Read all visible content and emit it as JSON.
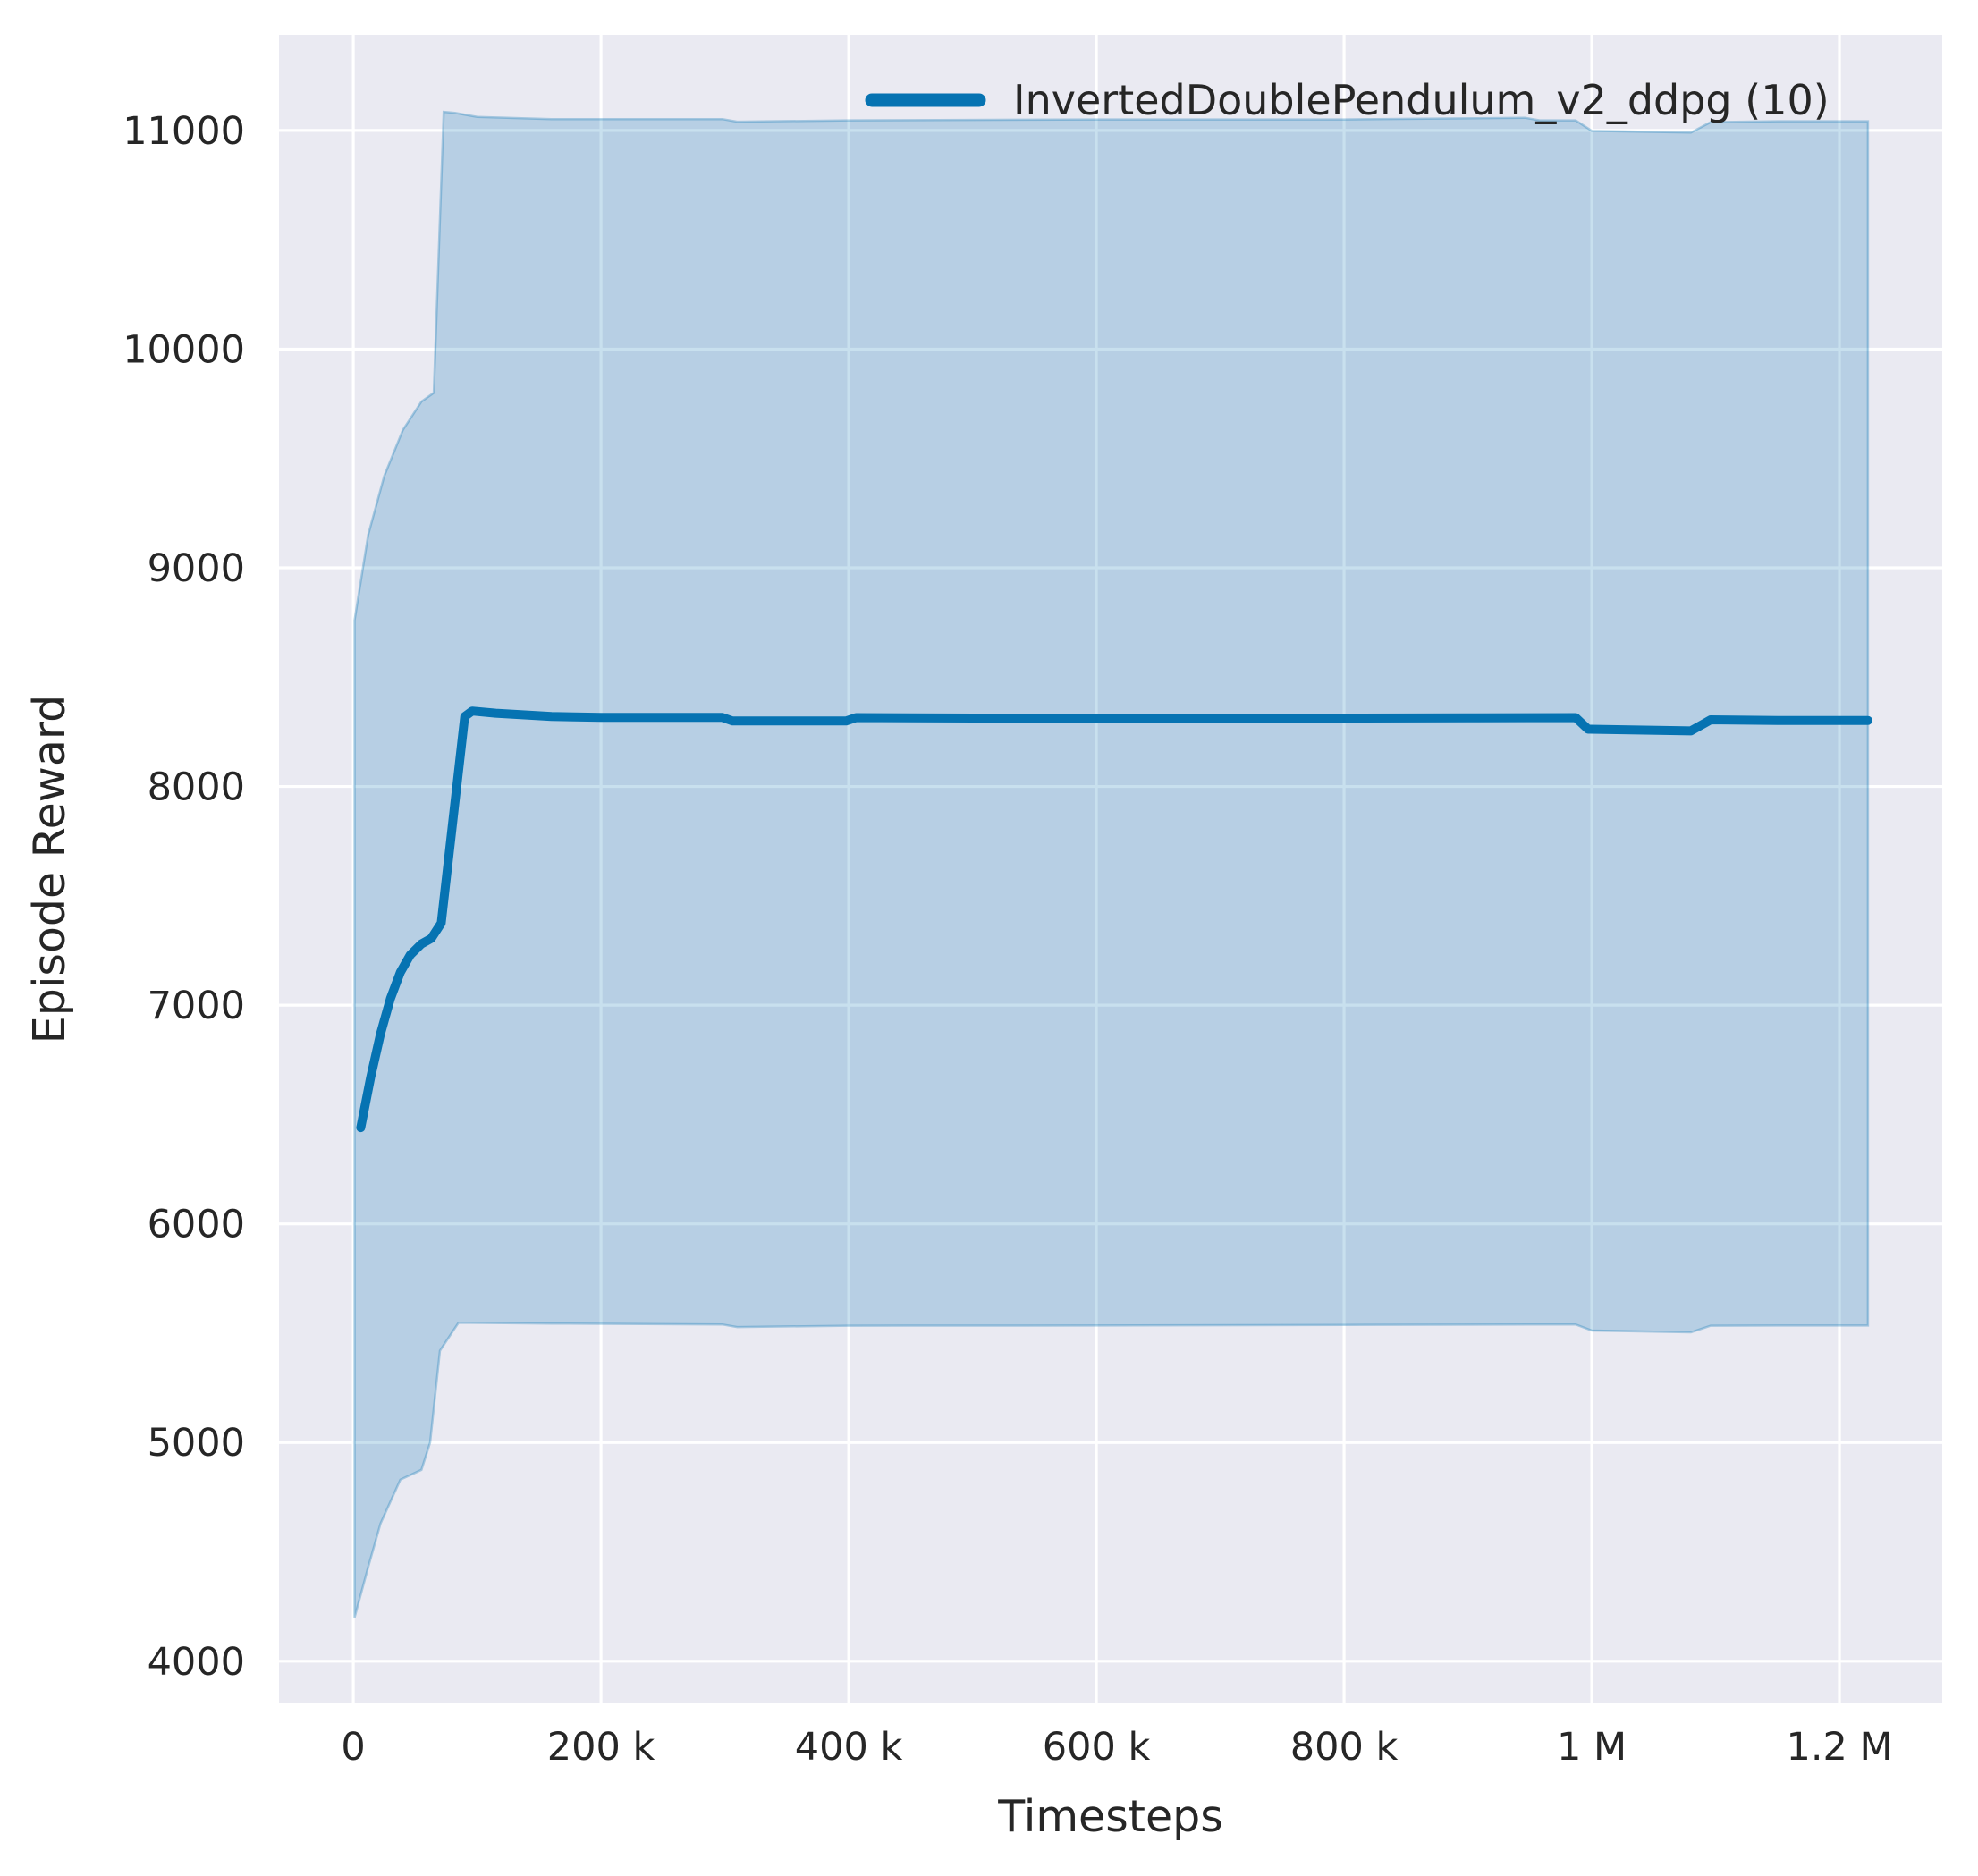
{
  "chart_data": {
    "type": "line",
    "title": "",
    "xlabel": "Timesteps",
    "ylabel": "Episode Reward",
    "grid": true,
    "legend_position": "upper right",
    "xlim": [
      -60000,
      1283000
    ],
    "ylim": [
      3807,
      11437
    ],
    "x_tick_values": [
      0,
      200000,
      400000,
      600000,
      800000,
      1000000,
      1200000
    ],
    "x_tick_labels": [
      "0",
      "200 k",
      "400 k",
      "600 k",
      "800 k",
      "1 M",
      "1.2 M"
    ],
    "y_tick_values": [
      4000,
      5000,
      6000,
      7000,
      8000,
      9000,
      10000,
      11000
    ],
    "y_tick_labels": [
      "4000",
      "5000",
      "6000",
      "7000",
      "8000",
      "9000",
      "10000",
      "11000"
    ],
    "colors": {
      "line": "#0673b2",
      "band_fill": "rgba(6,115,178,0.22)",
      "band_edge": "rgba(6,115,178,0.30)",
      "plot_bg": "#eaeaf2",
      "grid": "#ffffff",
      "text": "#262626"
    },
    "series": [
      {
        "name": "InvertedDoublePendulum_v2_ddpg (10)",
        "mean": [
          [
            6000,
            6440
          ],
          [
            14000,
            6670
          ],
          [
            22000,
            6870
          ],
          [
            30000,
            7030
          ],
          [
            38000,
            7150
          ],
          [
            46000,
            7230
          ],
          [
            55000,
            7280
          ],
          [
            63000,
            7305
          ],
          [
            71000,
            7375
          ],
          [
            90000,
            8320
          ],
          [
            96000,
            8345
          ],
          [
            115000,
            8335
          ],
          [
            160000,
            8320
          ],
          [
            200000,
            8316
          ],
          [
            298000,
            8316
          ],
          [
            306000,
            8300
          ],
          [
            398000,
            8300
          ],
          [
            406000,
            8315
          ],
          [
            500000,
            8313
          ],
          [
            600000,
            8312
          ],
          [
            700000,
            8312
          ],
          [
            800000,
            8313
          ],
          [
            900000,
            8314
          ],
          [
            987000,
            8315
          ],
          [
            997000,
            8262
          ],
          [
            1080000,
            8254
          ],
          [
            1096000,
            8305
          ],
          [
            1150000,
            8302
          ],
          [
            1223000,
            8302
          ]
        ],
        "band_upper": [
          [
            1000,
            8760
          ],
          [
            12000,
            9150
          ],
          [
            25000,
            9420
          ],
          [
            40000,
            9630
          ],
          [
            55000,
            9760
          ],
          [
            65000,
            9800
          ],
          [
            73000,
            11085
          ],
          [
            82000,
            11080
          ],
          [
            100000,
            11062
          ],
          [
            160000,
            11052
          ],
          [
            298000,
            11052
          ],
          [
            310000,
            11040
          ],
          [
            400000,
            11046
          ],
          [
            600000,
            11050
          ],
          [
            800000,
            11050
          ],
          [
            946000,
            11058
          ],
          [
            958000,
            11046
          ],
          [
            987000,
            11046
          ],
          [
            1000000,
            10998
          ],
          [
            1080000,
            10990
          ],
          [
            1096000,
            11038
          ],
          [
            1150000,
            11042
          ],
          [
            1223000,
            11042
          ]
        ],
        "band_lower": [
          [
            1000,
            4200
          ],
          [
            12000,
            4430
          ],
          [
            22000,
            4630
          ],
          [
            38000,
            4830
          ],
          [
            55000,
            4875
          ],
          [
            62000,
            5000
          ],
          [
            70000,
            5420
          ],
          [
            85000,
            5548
          ],
          [
            160000,
            5544
          ],
          [
            298000,
            5540
          ],
          [
            310000,
            5528
          ],
          [
            400000,
            5534
          ],
          [
            600000,
            5535
          ],
          [
            800000,
            5538
          ],
          [
            950000,
            5540
          ],
          [
            987000,
            5540
          ],
          [
            1000000,
            5512
          ],
          [
            1080000,
            5504
          ],
          [
            1096000,
            5534
          ],
          [
            1150000,
            5535
          ],
          [
            1223000,
            5535
          ]
        ]
      }
    ]
  }
}
